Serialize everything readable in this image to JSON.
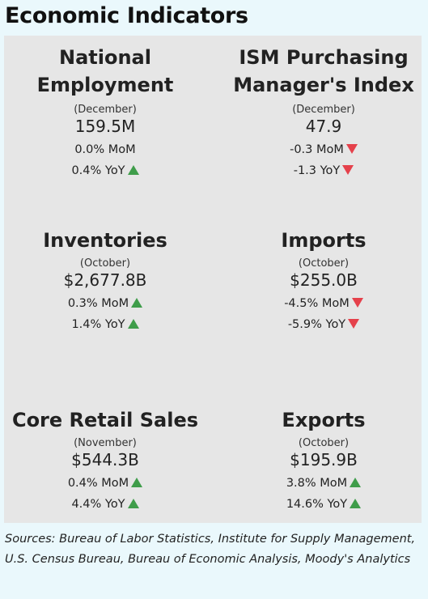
{
  "title": "Economic Indicators",
  "colors": {
    "up": "#3f9d4a",
    "down": "#e5414b",
    "panel": "#e6e6e6",
    "background": "#eaf8fc"
  },
  "indicators": [
    {
      "name": "National Employment",
      "period": "(December)",
      "value": "159.5M",
      "mom": "0.0% MoM",
      "mom_dir": "none",
      "yoy": "0.4% YoY",
      "yoy_dir": "up"
    },
    {
      "name": "ISM Purchasing Manager's Index",
      "period": "(December)",
      "value": "47.9",
      "mom": "-0.3 MoM",
      "mom_dir": "down",
      "yoy": "-1.3 YoY",
      "yoy_dir": "down"
    },
    {
      "name": "Inventories",
      "period": "(October)",
      "value": "$2,677.8B",
      "mom": "0.3% MoM",
      "mom_dir": "up",
      "yoy": "1.4% YoY",
      "yoy_dir": "up"
    },
    {
      "name": "Imports",
      "period": "(October)",
      "value": "$255.0B",
      "mom": "-4.5% MoM",
      "mom_dir": "down",
      "yoy": "-5.9% YoY",
      "yoy_dir": "down"
    },
    {
      "name": "Core Retail Sales",
      "period": "(November)",
      "value": "$544.3B",
      "mom": "0.4% MoM",
      "mom_dir": "up",
      "yoy": "4.4% YoY",
      "yoy_dir": "up"
    },
    {
      "name": "Exports",
      "period": "(October)",
      "value": "$195.9B",
      "mom": "3.8% MoM",
      "mom_dir": "up",
      "yoy": "14.6% YoY",
      "yoy_dir": "up"
    }
  ],
  "name_lines": {
    "employment": [
      "National",
      "Employment"
    ],
    "ism": [
      "ISM Purchasing",
      "Manager's Index"
    ]
  },
  "sources": "Sources: Bureau of Labor Statistics, Institute for Supply Management, U.S. Census Bureau, Bureau of Economic Analysis, Moody's Analytics"
}
